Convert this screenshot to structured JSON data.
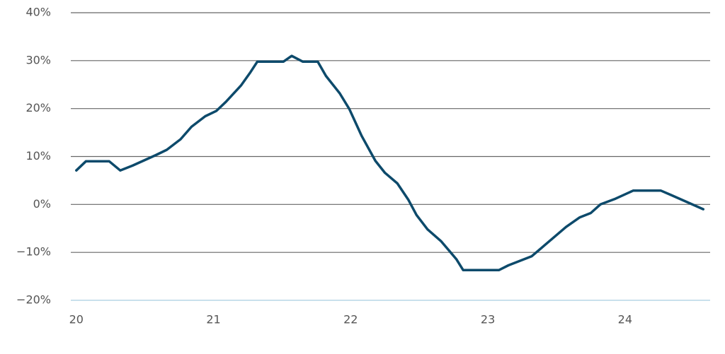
{
  "chart_data": {
    "type": "line",
    "x": [
      20.0,
      20.07,
      20.24,
      20.32,
      20.41,
      20.58,
      20.66,
      20.76,
      20.84,
      20.94,
      21.02,
      21.09,
      21.2,
      21.27,
      21.32,
      21.51,
      21.57,
      21.65,
      21.76,
      21.82,
      21.92,
      21.99,
      22.08,
      22.18,
      22.25,
      22.34,
      22.42,
      22.48,
      22.56,
      22.66,
      22.77,
      22.82,
      23.08,
      23.15,
      23.32,
      23.41,
      23.57,
      23.67,
      23.75,
      23.82,
      23.93,
      24.06,
      24.26,
      24.34,
      24.57
    ],
    "series": [
      {
        "color": "#0d4a6b",
        "values": [
          7.1,
          9,
          9,
          7.1,
          8.1,
          10.3,
          11.4,
          13.6,
          16.2,
          18.4,
          19.5,
          21.4,
          24.8,
          27.6,
          29.8,
          29.8,
          31,
          29.8,
          29.8,
          26.8,
          23.2,
          19.9,
          14.3,
          9.1,
          6.6,
          4.4,
          1,
          -2.2,
          -5.2,
          -7.7,
          -11.4,
          -13.7,
          -13.7,
          -12.7,
          -10.8,
          -8.6,
          -4.7,
          -2.7,
          -1.8,
          0,
          1.2,
          2.9,
          2.9,
          1.9,
          -1
        ]
      }
    ],
    "xlim": [
      19.96,
      24.62
    ],
    "xticks": [
      20,
      21,
      22,
      23,
      24
    ],
    "ylim": [
      -20,
      40
    ],
    "yticks": [
      {
        "value": -20,
        "label": "−20%"
      },
      {
        "value": -10,
        "label": "−10%"
      },
      {
        "value": 0,
        "label": "0%"
      },
      {
        "value": 10,
        "label": "10%"
      },
      {
        "value": 20,
        "label": "20%"
      },
      {
        "value": 30,
        "label": "30%"
      },
      {
        "value": 40,
        "label": "40%"
      }
    ],
    "grid": true
  }
}
